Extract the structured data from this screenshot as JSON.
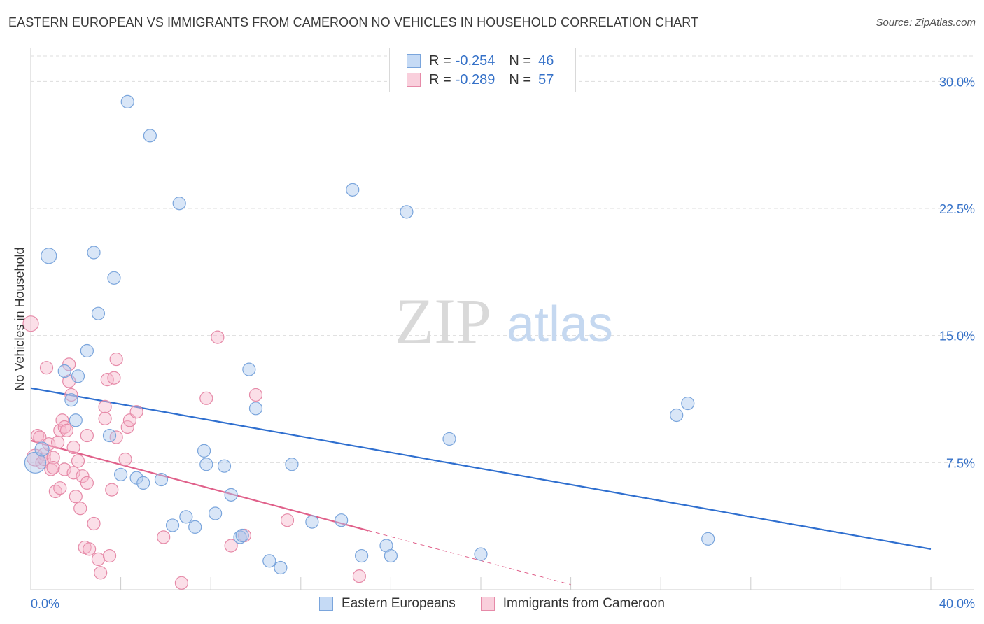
{
  "header": {
    "title": "EASTERN EUROPEAN VS IMMIGRANTS FROM CAMEROON NO VEHICLES IN HOUSEHOLD CORRELATION CHART",
    "source": "Source: ZipAtlas.com"
  },
  "watermark": {
    "zip": "ZIP",
    "atlas": "atlas"
  },
  "legend_top": {
    "rows": [
      {
        "r_label": "R =",
        "r_value": "-0.254",
        "n_label": "N =",
        "n_value": "46"
      },
      {
        "r_label": "R =",
        "r_value": "-0.289",
        "n_label": "N =",
        "n_value": "57"
      }
    ]
  },
  "colors": {
    "blue_fill": "#aac8ee",
    "blue_stroke": "#7aa5dc",
    "blue_line": "#2f6fcf",
    "pink_fill": "#f6b8cc",
    "pink_stroke": "#e68aa8",
    "pink_line": "#e0608a",
    "tick_label": "#3571c8",
    "grid": "#dddddd"
  },
  "chart_data": {
    "type": "scatter",
    "title": "EASTERN EUROPEAN VS IMMIGRANTS FROM CAMEROON NO VEHICLES IN HOUSEHOLD CORRELATION CHART",
    "xlabel": "",
    "ylabel": "No Vehicles in Household",
    "xlim": [
      0,
      40
    ],
    "ylim": [
      0,
      31.5
    ],
    "x_tick_labels": [
      "0.0%",
      "40.0%"
    ],
    "y_ticks": [
      7.5,
      15.0,
      22.5,
      30.0
    ],
    "y_tick_labels": [
      "7.5%",
      "15.0%",
      "22.5%",
      "30.0%"
    ],
    "series": [
      {
        "name": "Eastern Europeans",
        "r": -0.254,
        "n": 46,
        "trend": {
          "x0": 0,
          "y0": 11.9,
          "x1": 40,
          "y1": 2.4,
          "dash_from": null
        },
        "points": [
          [
            0.2,
            7.5,
            14
          ],
          [
            0.5,
            8.3,
            9
          ],
          [
            0.8,
            19.7,
            10
          ],
          [
            2.0,
            10.0,
            8
          ],
          [
            1.5,
            12.9,
            8
          ],
          [
            1.8,
            11.2,
            8
          ],
          [
            2.1,
            12.6,
            8
          ],
          [
            2.5,
            14.1,
            8
          ],
          [
            2.8,
            19.9,
            8
          ],
          [
            3.0,
            16.3,
            8
          ],
          [
            3.5,
            9.1,
            8
          ],
          [
            3.7,
            18.4,
            8
          ],
          [
            4.0,
            6.8,
            8
          ],
          [
            4.3,
            28.8,
            8
          ],
          [
            4.7,
            6.6,
            8
          ],
          [
            5.0,
            6.3,
            8
          ],
          [
            5.3,
            26.8,
            8
          ],
          [
            5.8,
            6.5,
            8
          ],
          [
            6.3,
            3.8,
            8
          ],
          [
            6.6,
            22.8,
            8
          ],
          [
            6.9,
            4.3,
            8
          ],
          [
            7.3,
            3.7,
            8
          ],
          [
            7.7,
            8.2,
            8
          ],
          [
            8.2,
            4.5,
            8
          ],
          [
            7.8,
            7.4,
            8
          ],
          [
            8.6,
            7.3,
            8
          ],
          [
            8.9,
            5.6,
            8
          ],
          [
            9.3,
            3.1,
            8
          ],
          [
            9.4,
            3.2,
            8
          ],
          [
            9.7,
            13.0,
            8
          ],
          [
            10.0,
            10.7,
            8
          ],
          [
            10.6,
            1.7,
            8
          ],
          [
            11.1,
            1.3,
            8
          ],
          [
            11.6,
            7.4,
            8
          ],
          [
            12.5,
            4.0,
            8
          ],
          [
            13.8,
            4.1,
            8
          ],
          [
            14.3,
            23.6,
            8
          ],
          [
            14.7,
            2.0,
            8
          ],
          [
            15.8,
            2.6,
            8
          ],
          [
            16.0,
            2.0,
            8
          ],
          [
            16.7,
            22.3,
            8
          ],
          [
            18.6,
            8.9,
            8
          ],
          [
            20.0,
            2.1,
            8
          ],
          [
            28.7,
            10.3,
            8
          ],
          [
            29.2,
            11.0,
            8
          ],
          [
            30.1,
            3.0,
            8
          ]
        ]
      },
      {
        "name": "Immigrants from Cameroon",
        "r": -0.289,
        "n": 57,
        "trend": {
          "x0": 0,
          "y0": 8.8,
          "x1": 24.0,
          "y1": 0.3,
          "dash_from": 15.0
        },
        "points": [
          [
            0.0,
            15.7,
            10
          ],
          [
            0.2,
            7.8,
            11
          ],
          [
            0.3,
            9.1,
            8
          ],
          [
            0.4,
            9.0,
            8
          ],
          [
            0.5,
            7.5,
            8
          ],
          [
            0.6,
            8.0,
            8
          ],
          [
            0.6,
            7.7,
            8
          ],
          [
            0.7,
            13.1,
            8
          ],
          [
            0.8,
            8.6,
            8
          ],
          [
            0.9,
            7.1,
            8
          ],
          [
            1.0,
            7.8,
            8
          ],
          [
            1.0,
            7.2,
            8
          ],
          [
            1.1,
            5.8,
            8
          ],
          [
            1.2,
            8.7,
            8
          ],
          [
            1.3,
            9.4,
            8
          ],
          [
            1.3,
            6.0,
            8
          ],
          [
            1.4,
            10.0,
            8
          ],
          [
            1.5,
            9.6,
            8
          ],
          [
            1.5,
            7.1,
            8
          ],
          [
            1.6,
            9.4,
            8
          ],
          [
            1.7,
            13.3,
            8
          ],
          [
            1.7,
            12.3,
            8
          ],
          [
            1.8,
            11.5,
            8
          ],
          [
            1.9,
            6.9,
            8
          ],
          [
            1.9,
            8.4,
            8
          ],
          [
            2.0,
            5.5,
            8
          ],
          [
            2.1,
            7.6,
            8
          ],
          [
            2.2,
            4.8,
            8
          ],
          [
            2.3,
            6.7,
            8
          ],
          [
            2.4,
            2.5,
            8
          ],
          [
            2.5,
            9.1,
            8
          ],
          [
            2.5,
            6.3,
            8
          ],
          [
            2.6,
            2.4,
            8
          ],
          [
            2.8,
            3.9,
            8
          ],
          [
            3.0,
            1.8,
            8
          ],
          [
            3.1,
            1.0,
            8
          ],
          [
            3.3,
            10.8,
            8
          ],
          [
            3.3,
            10.1,
            8
          ],
          [
            3.4,
            12.4,
            8
          ],
          [
            3.5,
            2.0,
            8
          ],
          [
            3.6,
            5.9,
            8
          ],
          [
            3.7,
            12.5,
            8
          ],
          [
            3.8,
            13.6,
            8
          ],
          [
            3.8,
            9.0,
            8
          ],
          [
            4.2,
            7.7,
            8
          ],
          [
            4.3,
            9.6,
            8
          ],
          [
            4.4,
            10.0,
            8
          ],
          [
            4.7,
            10.5,
            8
          ],
          [
            5.9,
            3.1,
            8
          ],
          [
            6.7,
            0.4,
            8
          ],
          [
            7.8,
            11.3,
            8
          ],
          [
            8.3,
            14.9,
            8
          ],
          [
            8.9,
            2.6,
            8
          ],
          [
            10.0,
            11.5,
            8
          ],
          [
            11.4,
            4.1,
            8
          ],
          [
            14.6,
            0.8,
            8
          ],
          [
            9.5,
            3.2,
            8
          ]
        ]
      }
    ],
    "legend": [
      "Eastern Europeans",
      "Immigrants from Cameroon"
    ],
    "legend_position": "bottom-center",
    "grid": true
  }
}
